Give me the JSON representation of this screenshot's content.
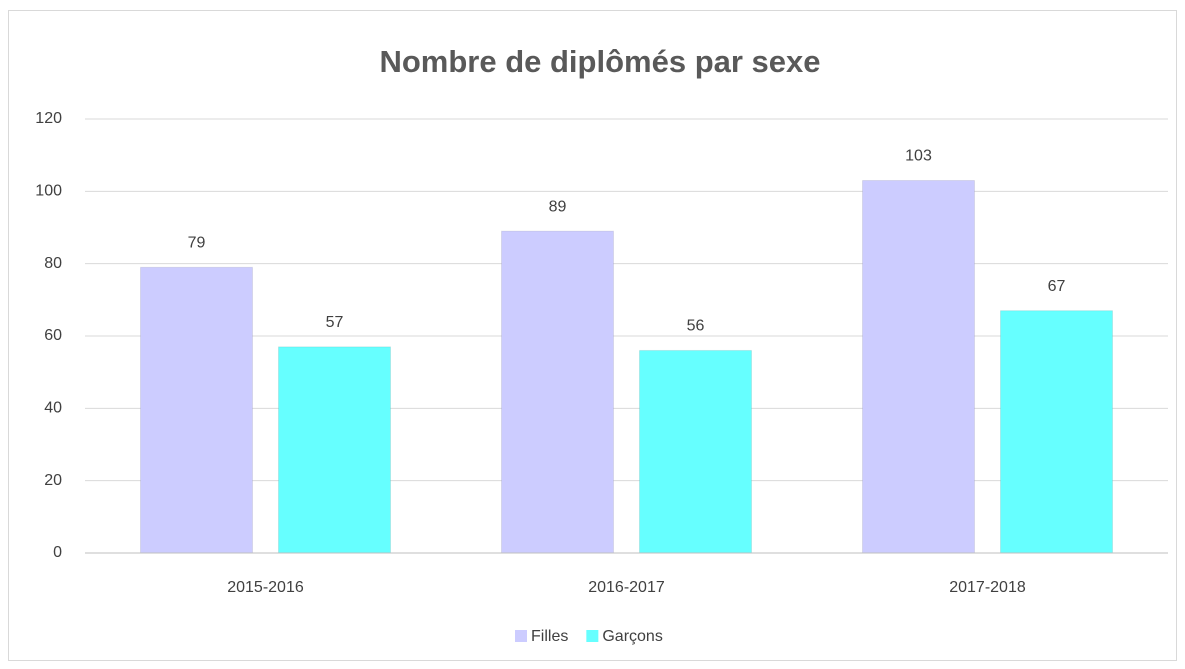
{
  "chart_data": {
    "type": "bar",
    "title": "Nombre de diplômés par sexe",
    "categories": [
      "2015-2016",
      "2016-2017",
      "2017-2018"
    ],
    "series": [
      {
        "name": "Filles",
        "color": "#ccccff",
        "values": [
          79,
          89,
          103
        ]
      },
      {
        "name": "Garçons",
        "color": "#66ffff",
        "values": [
          57,
          56,
          67
        ]
      }
    ],
    "ylim": [
      0,
      120
    ],
    "yticks": [
      0,
      20,
      40,
      60,
      80,
      100,
      120
    ],
    "grid": true,
    "legend": "bottom"
  }
}
